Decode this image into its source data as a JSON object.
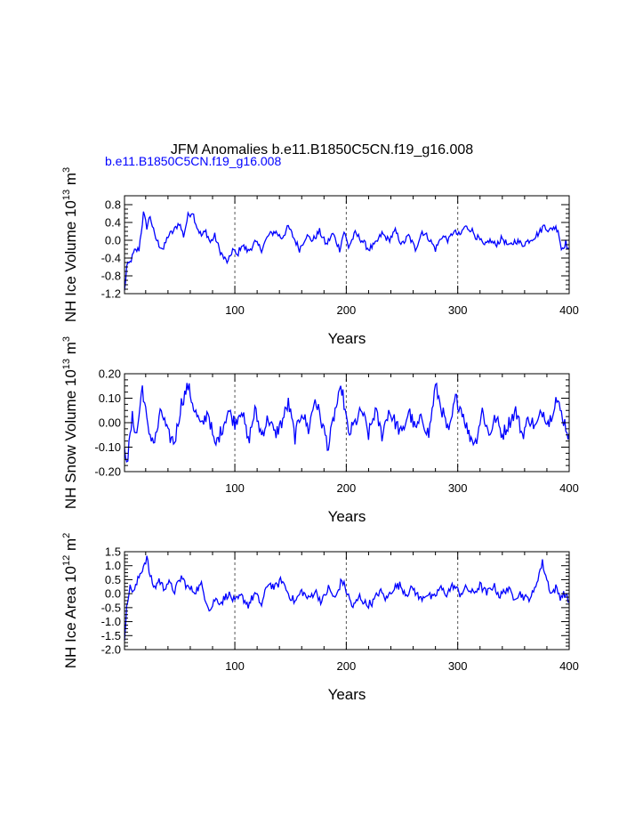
{
  "title": "JFM Anomalies b.e11.B1850C5CN.f19_g16.008",
  "subtitle": "b.e11.B1850C5CN.f19_g16.008",
  "colors": {
    "series": "#0000ff",
    "axis": "#000000",
    "grid": "#555555"
  },
  "chart_data": [
    {
      "type": "line",
      "ylabel": {
        "base": "NH Ice Volume 10",
        "exp": "13",
        "unit": " m",
        "unit_exp": "3"
      },
      "xlabel": "Years",
      "xlim": [
        1,
        400
      ],
      "ylim": [
        -1.2,
        1.0
      ],
      "xticks": [
        100,
        200,
        300,
        400
      ],
      "yticks": [
        0.8,
        0.4,
        0.0,
        -0.4,
        -0.8,
        -1.2
      ],
      "ytick_labels": [
        "0.8",
        "0.4",
        "0.0",
        "-0.4",
        "-0.8",
        "-1.2"
      ],
      "grid_x": [
        100,
        200,
        300
      ],
      "y_knots": [
        [
          1,
          -1.15
        ],
        [
          3,
          -0.6
        ],
        [
          6,
          -0.5
        ],
        [
          10,
          -0.25
        ],
        [
          14,
          -0.2
        ],
        [
          18,
          0.6
        ],
        [
          21,
          0.3
        ],
        [
          24,
          0.55
        ],
        [
          28,
          0.1
        ],
        [
          32,
          -0.1
        ],
        [
          36,
          -0.2
        ],
        [
          40,
          0.1
        ],
        [
          45,
          0.2
        ],
        [
          50,
          0.4
        ],
        [
          54,
          0.1
        ],
        [
          58,
          0.55
        ],
        [
          62,
          0.65
        ],
        [
          66,
          0.3
        ],
        [
          70,
          0.1
        ],
        [
          74,
          0.2
        ],
        [
          78,
          -0.05
        ],
        [
          82,
          0.1
        ],
        [
          86,
          -0.2
        ],
        [
          90,
          -0.4
        ],
        [
          94,
          -0.5
        ],
        [
          98,
          -0.2
        ],
        [
          102,
          -0.35
        ],
        [
          106,
          -0.1
        ],
        [
          112,
          -0.25
        ],
        [
          118,
          -0.05
        ],
        [
          124,
          -0.2
        ],
        [
          130,
          0.1
        ],
        [
          136,
          0.2
        ],
        [
          142,
          0.05
        ],
        [
          148,
          0.3
        ],
        [
          154,
          0.0
        ],
        [
          158,
          -0.2
        ],
        [
          164,
          0.1
        ],
        [
          170,
          0.0
        ],
        [
          176,
          0.2
        ],
        [
          182,
          -0.1
        ],
        [
          188,
          0.15
        ],
        [
          194,
          -0.2
        ],
        [
          198,
          0.2
        ],
        [
          202,
          -0.15
        ],
        [
          208,
          0.15
        ],
        [
          214,
          0.0
        ],
        [
          220,
          -0.2
        ],
        [
          226,
          -0.1
        ],
        [
          232,
          0.15
        ],
        [
          238,
          0.0
        ],
        [
          244,
          0.2
        ],
        [
          250,
          -0.1
        ],
        [
          256,
          0.1
        ],
        [
          262,
          -0.2
        ],
        [
          268,
          0.2
        ],
        [
          274,
          0.05
        ],
        [
          280,
          -0.2
        ],
        [
          286,
          0.1
        ],
        [
          292,
          0.0
        ],
        [
          296,
          0.2
        ],
        [
          302,
          0.1
        ],
        [
          306,
          0.3
        ],
        [
          312,
          0.25
        ],
        [
          316,
          0.1
        ],
        [
          320,
          0.0
        ],
        [
          324,
          -0.15
        ],
        [
          328,
          0.0
        ],
        [
          334,
          -0.1
        ],
        [
          340,
          0.05
        ],
        [
          346,
          -0.15
        ],
        [
          352,
          0.0
        ],
        [
          358,
          -0.1
        ],
        [
          364,
          0.0
        ],
        [
          370,
          0.1
        ],
        [
          374,
          0.2
        ],
        [
          378,
          0.35
        ],
        [
          382,
          0.2
        ],
        [
          386,
          0.3
        ],
        [
          390,
          0.25
        ],
        [
          393,
          -0.2
        ],
        [
          397,
          -0.05
        ],
        [
          400,
          -0.25
        ]
      ],
      "noise": 0.15
    },
    {
      "type": "line",
      "ylabel": {
        "base": "NH Snow Volume 10",
        "exp": "13",
        "unit": " m",
        "unit_exp": "3"
      },
      "xlabel": "Years",
      "xlim": [
        1,
        400
      ],
      "ylim": [
        -0.2,
        0.2
      ],
      "xticks": [
        100,
        200,
        300,
        400
      ],
      "yticks": [
        0.2,
        0.1,
        0.0,
        -0.1,
        -0.2
      ],
      "ytick_labels": [
        "0.20",
        "0.10",
        "0.00",
        "-0.10",
        "-0.20"
      ],
      "grid_x": [
        100,
        200,
        300
      ],
      "y_knots": [
        [
          1,
          -0.12
        ],
        [
          4,
          -0.14
        ],
        [
          8,
          0.02
        ],
        [
          12,
          -0.05
        ],
        [
          17,
          0.15
        ],
        [
          22,
          -0.03
        ],
        [
          28,
          -0.08
        ],
        [
          34,
          0.05
        ],
        [
          40,
          -0.05
        ],
        [
          46,
          -0.08
        ],
        [
          52,
          0.08
        ],
        [
          58,
          0.15
        ],
        [
          64,
          0.05
        ],
        [
          70,
          -0.02
        ],
        [
          76,
          0.05
        ],
        [
          82,
          -0.1
        ],
        [
          88,
          -0.03
        ],
        [
          94,
          0.05
        ],
        [
          100,
          0.0
        ],
        [
          106,
          0.06
        ],
        [
          112,
          -0.08
        ],
        [
          118,
          0.05
        ],
        [
          124,
          -0.05
        ],
        [
          130,
          0.02
        ],
        [
          136,
          -0.05
        ],
        [
          142,
          0.0
        ],
        [
          148,
          0.08
        ],
        [
          154,
          -0.06
        ],
        [
          160,
          0.05
        ],
        [
          166,
          -0.03
        ],
        [
          172,
          0.1
        ],
        [
          178,
          0.0
        ],
        [
          184,
          -0.1
        ],
        [
          190,
          0.05
        ],
        [
          196,
          0.14
        ],
        [
          202,
          -0.05
        ],
        [
          208,
          0.0
        ],
        [
          214,
          0.05
        ],
        [
          220,
          -0.05
        ],
        [
          226,
          0.05
        ],
        [
          232,
          -0.05
        ],
        [
          238,
          0.05
        ],
        [
          244,
          0.0
        ],
        [
          250,
          -0.05
        ],
        [
          256,
          0.05
        ],
        [
          262,
          -0.03
        ],
        [
          268,
          0.02
        ],
        [
          274,
          -0.05
        ],
        [
          280,
          0.15
        ],
        [
          286,
          0.05
        ],
        [
          292,
          -0.05
        ],
        [
          298,
          0.1
        ],
        [
          304,
          0.05
        ],
        [
          310,
          -0.05
        ],
        [
          316,
          -0.08
        ],
        [
          322,
          0.05
        ],
        [
          328,
          -0.05
        ],
        [
          334,
          0.02
        ],
        [
          340,
          -0.05
        ],
        [
          346,
          0.0
        ],
        [
          352,
          0.05
        ],
        [
          358,
          -0.05
        ],
        [
          364,
          0.02
        ],
        [
          370,
          -0.02
        ],
        [
          376,
          0.05
        ],
        [
          382,
          0.0
        ],
        [
          388,
          0.1
        ],
        [
          392,
          0.05
        ],
        [
          396,
          0.0
        ],
        [
          400,
          -0.06
        ]
      ],
      "noise": 0.06
    },
    {
      "type": "line",
      "ylabel": {
        "base": "NH Ice Area 10",
        "exp": "12",
        "unit": " m",
        "unit_exp": "2"
      },
      "xlabel": "Years",
      "xlim": [
        1,
        400
      ],
      "ylim": [
        -2.0,
        1.5
      ],
      "xticks": [
        100,
        200,
        300,
        400
      ],
      "yticks": [
        1.5,
        1.0,
        0.5,
        0.0,
        -0.5,
        -1.0,
        -1.5,
        -2.0
      ],
      "ytick_labels": [
        "1.5",
        "1.0",
        "0.5",
        "0.0",
        "-0.5",
        "-1.0",
        "-1.5",
        "-2.0"
      ],
      "grid_x": [
        100,
        200,
        300
      ],
      "y_knots": [
        [
          1,
          -1.8
        ],
        [
          3,
          -0.3
        ],
        [
          6,
          0.2
        ],
        [
          10,
          0.1
        ],
        [
          14,
          0.6
        ],
        [
          18,
          1.0
        ],
        [
          21,
          1.3
        ],
        [
          24,
          0.6
        ],
        [
          28,
          0.2
        ],
        [
          32,
          0.5
        ],
        [
          36,
          0.2
        ],
        [
          40,
          0.4
        ],
        [
          46,
          0.1
        ],
        [
          52,
          0.6
        ],
        [
          58,
          0.2
        ],
        [
          64,
          0.1
        ],
        [
          70,
          0.3
        ],
        [
          74,
          -0.2
        ],
        [
          78,
          -0.6
        ],
        [
          82,
          -0.2
        ],
        [
          88,
          -0.3
        ],
        [
          94,
          0.0
        ],
        [
          100,
          -0.3
        ],
        [
          106,
          -0.1
        ],
        [
          112,
          -0.4
        ],
        [
          118,
          0.0
        ],
        [
          124,
          -0.4
        ],
        [
          130,
          0.4
        ],
        [
          136,
          0.2
        ],
        [
          142,
          0.5
        ],
        [
          148,
          0.0
        ],
        [
          154,
          -0.3
        ],
        [
          160,
          0.1
        ],
        [
          166,
          -0.2
        ],
        [
          172,
          0.1
        ],
        [
          178,
          -0.3
        ],
        [
          184,
          0.2
        ],
        [
          190,
          -0.2
        ],
        [
          196,
          0.5
        ],
        [
          200,
          0.1
        ],
        [
          206,
          -0.5
        ],
        [
          212,
          -0.1
        ],
        [
          218,
          -0.4
        ],
        [
          224,
          -0.3
        ],
        [
          230,
          0.1
        ],
        [
          236,
          -0.2
        ],
        [
          242,
          0.2
        ],
        [
          248,
          0.3
        ],
        [
          254,
          0.0
        ],
        [
          260,
          0.2
        ],
        [
          266,
          -0.2
        ],
        [
          272,
          0.0
        ],
        [
          278,
          -0.2
        ],
        [
          284,
          0.2
        ],
        [
          290,
          0.0
        ],
        [
          296,
          0.3
        ],
        [
          302,
          0.0
        ],
        [
          308,
          0.2
        ],
        [
          314,
          0.0
        ],
        [
          320,
          0.3
        ],
        [
          326,
          0.0
        ],
        [
          332,
          0.3
        ],
        [
          338,
          -0.1
        ],
        [
          344,
          0.2
        ],
        [
          350,
          -0.1
        ],
        [
          356,
          0.0
        ],
        [
          362,
          -0.2
        ],
        [
          368,
          0.0
        ],
        [
          372,
          0.6
        ],
        [
          376,
          1.1
        ],
        [
          380,
          0.5
        ],
        [
          384,
          0.0
        ],
        [
          388,
          0.2
        ],
        [
          392,
          -0.1
        ],
        [
          396,
          0.0
        ],
        [
          400,
          -0.3
        ]
      ],
      "noise": 0.3
    }
  ]
}
